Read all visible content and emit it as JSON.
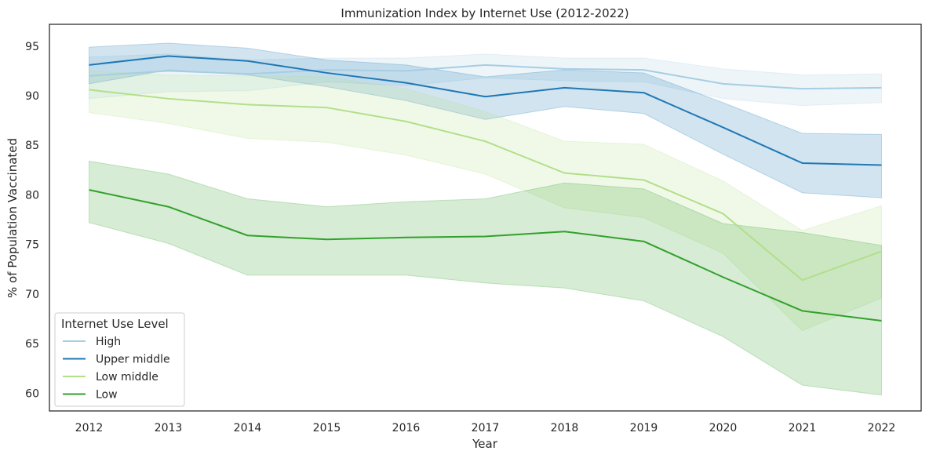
{
  "chart_data": {
    "type": "line",
    "title": "Immunization Index by Internet Use (2012-2022)",
    "xlabel": "Year",
    "ylabel": "% of Population Vaccinated",
    "x": [
      2012,
      2013,
      2014,
      2015,
      2016,
      2017,
      2018,
      2019,
      2020,
      2021,
      2022
    ],
    "xlim": [
      2011.5,
      2022.5
    ],
    "ylim": [
      58.2,
      97.2
    ],
    "yticks": [
      60,
      65,
      70,
      75,
      80,
      85,
      90,
      95
    ],
    "grid": false,
    "legend": {
      "title": "Internet Use Level",
      "placement": "lower-left"
    },
    "series": [
      {
        "name": "High",
        "color": "#a6cee3",
        "values": [
          92.0,
          92.5,
          92.2,
          92.6,
          92.5,
          93.1,
          92.7,
          92.6,
          91.2,
          90.7,
          90.8
        ],
        "ci_low": [
          89.7,
          90.4,
          90.5,
          91.4,
          91.0,
          91.8,
          91.5,
          91.4,
          89.7,
          89.0,
          89.3
        ],
        "ci_high": [
          93.9,
          94.2,
          93.6,
          93.8,
          93.8,
          94.2,
          93.8,
          93.8,
          92.7,
          92.1,
          92.2
        ]
      },
      {
        "name": "Upper middle",
        "color": "#1f78b4",
        "values": [
          93.1,
          94.0,
          93.5,
          92.3,
          91.3,
          89.9,
          90.8,
          90.3,
          86.8,
          83.2,
          83.0
        ],
        "ci_low": [
          91.2,
          92.6,
          92.1,
          90.9,
          89.5,
          87.6,
          88.9,
          88.2,
          84.1,
          80.2,
          79.7
        ],
        "ci_high": [
          94.9,
          95.3,
          94.8,
          93.6,
          93.1,
          91.9,
          92.6,
          92.3,
          89.3,
          86.2,
          86.1
        ]
      },
      {
        "name": "Low middle",
        "color": "#b2df8a",
        "values": [
          90.6,
          89.7,
          89.1,
          88.8,
          87.4,
          85.4,
          82.2,
          81.5,
          78.1,
          71.4,
          74.3
        ],
        "ci_low": [
          88.3,
          87.2,
          85.7,
          85.3,
          84.0,
          82.1,
          78.7,
          77.7,
          74.1,
          66.3,
          69.6
        ],
        "ci_high": [
          92.5,
          92.1,
          92.0,
          91.9,
          90.7,
          88.4,
          85.4,
          85.1,
          81.4,
          76.4,
          78.9
        ]
      },
      {
        "name": "Low",
        "color": "#33a02c",
        "values": [
          80.5,
          78.8,
          75.9,
          75.5,
          75.7,
          75.8,
          76.3,
          75.3,
          71.7,
          68.3,
          67.3
        ],
        "ci_low": [
          77.2,
          75.1,
          71.9,
          71.9,
          71.9,
          71.1,
          70.6,
          69.3,
          65.7,
          60.8,
          59.8
        ],
        "ci_high": [
          83.4,
          82.1,
          79.6,
          78.8,
          79.3,
          79.6,
          81.2,
          80.6,
          77.1,
          76.2,
          74.9
        ]
      }
    ]
  }
}
